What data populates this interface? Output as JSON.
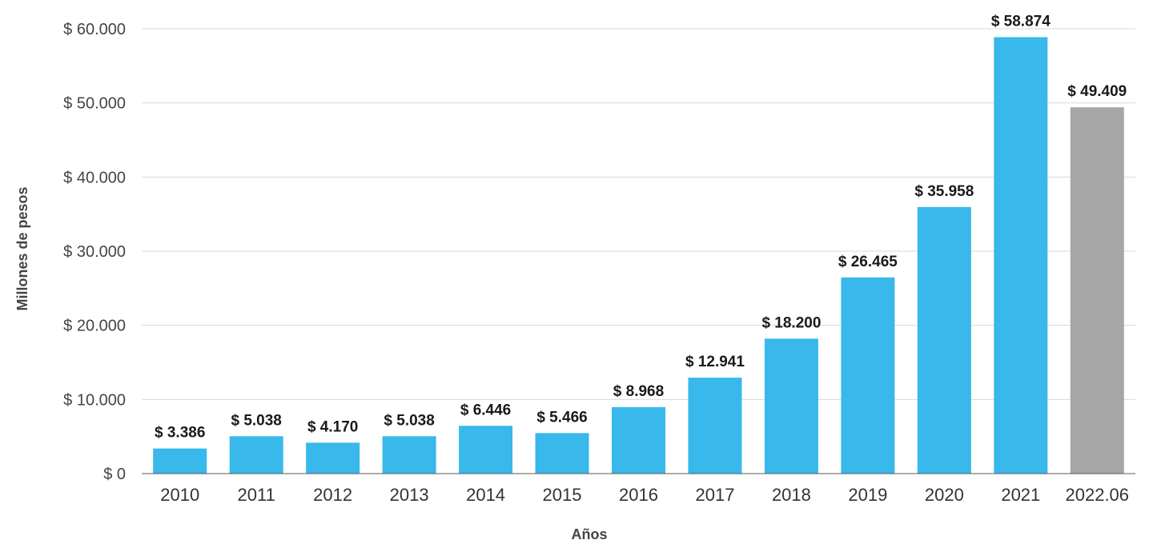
{
  "chart_data": {
    "type": "bar",
    "title": "",
    "xlabel": "Años",
    "ylabel": "Millones de pesos",
    "categories": [
      "2010",
      "2011",
      "2012",
      "2013",
      "2014",
      "2015",
      "2016",
      "2017",
      "2018",
      "2019",
      "2020",
      "2021",
      "2022.06"
    ],
    "values": [
      3386,
      5038,
      4170,
      5038,
      6446,
      5466,
      8968,
      12941,
      18200,
      26465,
      35958,
      58874,
      49409
    ],
    "value_labels": [
      "$ 3.386",
      "$ 5.038",
      "$ 4.170",
      "$ 5.038",
      "$ 6.446",
      "$ 5.466",
      "$ 8.968",
      "$ 12.941",
      "$ 18.200",
      "$ 26.465",
      "$ 35.958",
      "$ 58.874",
      "$ 49.409"
    ],
    "ylim": [
      0,
      60000
    ],
    "yticks": [
      0,
      10000,
      20000,
      30000,
      40000,
      50000,
      60000
    ],
    "ytick_labels": [
      "$ 0",
      "$ 10.000",
      "$ 20.000",
      "$ 30.000",
      "$ 40.000",
      "$ 50.000",
      "$ 60.000"
    ],
    "grid": true,
    "legend": "none",
    "colors": {
      "bar": "#38b8eb",
      "highlight_bar": "#a6a6a6",
      "grid": "#d9d9d9",
      "axis": "#595959"
    },
    "highlight_categories": [
      "2022.06"
    ]
  }
}
